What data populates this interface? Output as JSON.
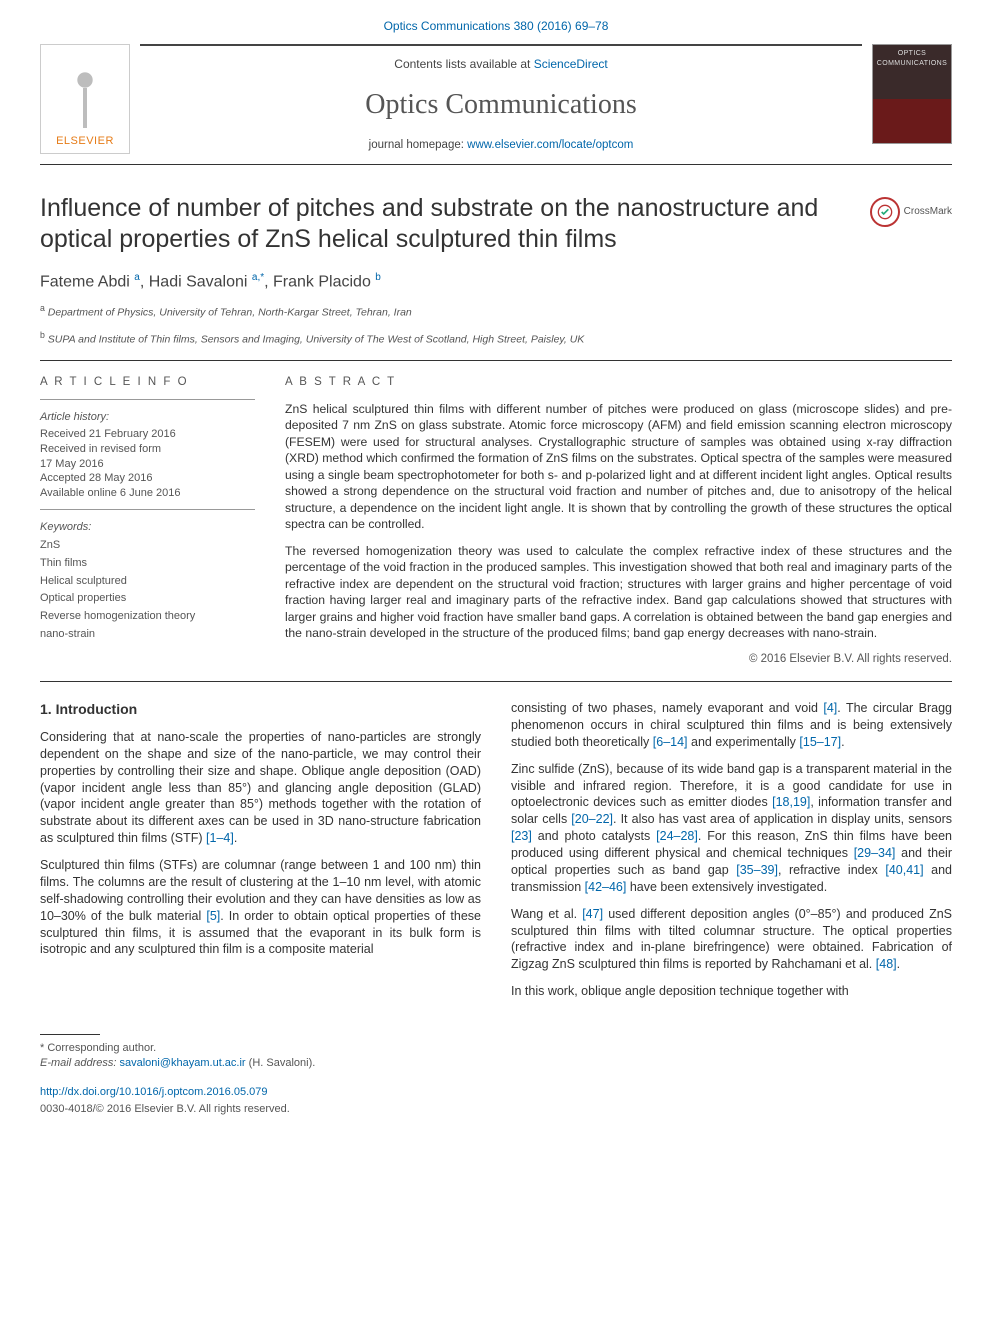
{
  "journal_ref": "Optics Communications 380 (2016) 69–78",
  "header": {
    "contents_prefix": "Contents lists available at ",
    "contents_link": "ScienceDirect",
    "journal_name": "Optics Communications",
    "homepage_prefix": "journal homepage: ",
    "homepage_url": "www.elsevier.com/locate/optcom",
    "publisher_brand": "ELSEVIER",
    "cover_label": "OPTICS COMMUNICATIONS"
  },
  "article": {
    "title": "Influence of number of pitches and substrate on the nanostructure and optical properties of ZnS helical sculptured thin films",
    "crossmark_label": "CrossMark",
    "authors_html": "Fateme Abdi <sup>a</sup>, Hadi Savaloni <sup>a,*</sup>, Frank Placido <sup>b</sup>",
    "affiliations": [
      {
        "sup": "a",
        "text": " Department of Physics, University of Tehran, North-Kargar Street, Tehran, Iran"
      },
      {
        "sup": "b",
        "text": " SUPA and Institute of Thin films, Sensors and Imaging, University of The West of Scotland, High Street, Paisley, UK"
      }
    ]
  },
  "info": {
    "heading": "A R T I C L E  I N F O",
    "history_label": "Article history:",
    "history": [
      "Received 21 February 2016",
      "Received in revised form",
      "17 May 2016",
      "Accepted 28 May 2016",
      "Available online 6 June 2016"
    ],
    "keywords_label": "Keywords:",
    "keywords": [
      "ZnS",
      "Thin films",
      "Helical sculptured",
      "Optical properties",
      "Reverse homogenization theory",
      "nano-strain"
    ]
  },
  "abstract": {
    "heading": "A B S T R A C T",
    "paragraphs": [
      "ZnS helical sculptured thin films with different number of pitches were produced on glass (microscope slides) and pre-deposited 7 nm ZnS on glass substrate. Atomic force microscopy (AFM) and field emission scanning electron microscopy (FESEM) were used for structural analyses. Crystallographic structure of samples was obtained using x-ray diffraction (XRD) method which confirmed the formation of ZnS films on the substrates. Optical spectra of the samples were measured using a single beam spectrophotometer for both s- and p-polarized light and at different incident light angles. Optical results showed a strong dependence on the structural void fraction and number of pitches and, due to anisotropy of the helical structure, a dependence on the incident light angle. It is shown that by controlling the growth of these structures the optical spectra can be controlled.",
      "The reversed homogenization theory was used to calculate the complex refractive index of these structures and the percentage of the void fraction in the produced samples. This investigation showed that both real and imaginary parts of the refractive index are dependent on the structural void fraction; structures with larger grains and higher percentage of void fraction having larger real and imaginary parts of the refractive index. Band gap calculations showed that structures with larger grains and higher void fraction have smaller band gaps. A correlation is obtained between the band gap energies and the nano-strain developed in the structure of the produced films; band gap energy decreases with nano-strain."
    ],
    "copyright": "© 2016 Elsevier B.V. All rights reserved."
  },
  "intro": {
    "heading": "1. Introduction",
    "left_paragraphs": [
      "Considering that at nano-scale the properties of nano-particles are strongly dependent on the shape and size of the nano-particle, we may control their properties by controlling their size and shape. Oblique angle deposition (OAD) (vapor incident angle less than 85°) and glancing angle deposition (GLAD) (vapor incident angle greater than 85°) methods together with the rotation of substrate about its different axes can be used in 3D nano-structure fabrication as sculptured thin films (STF) [1–4].",
      "Sculptured thin films (STFs) are columnar (range between 1 and 100 nm) thin films. The columns are the result of clustering at the 1–10 nm level, with atomic self-shadowing controlling their evolution and they can have densities as low as 10–30% of the bulk material [5]. In order to obtain optical properties of these sculptured thin films, it is assumed that the evaporant in its bulk form is isotropic and any sculptured thin film is a composite material"
    ],
    "right_paragraphs": [
      "consisting of two phases, namely evaporant and void [4]. The circular Bragg phenomenon occurs in chiral sculptured thin films and is being extensively studied both theoretically [6–14] and experimentally [15–17].",
      "Zinc sulfide (ZnS), because of its wide band gap is a transparent material in the visible and infrared region. Therefore, it is a good candidate for use in optoelectronic devices such as emitter diodes [18,19], information transfer and solar cells [20–22]. It also has vast area of application in display units, sensors [23] and photo catalysts [24–28]. For this reason, ZnS thin films have been produced using different physical and chemical techniques [29–34] and their optical properties such as band gap [35–39], refractive index [40,41] and transmission [42–46] have been extensively investigated.",
      "Wang et al. [47] used different deposition angles (0°–85°) and produced ZnS sculptured thin films with tilted columnar structure. The optical properties (refractive index and in-plane birefringence) were obtained. Fabrication of Zigzag ZnS sculptured thin films is reported by Rahchamani et al. [48].",
      "In this work, oblique angle deposition technique together with"
    ]
  },
  "footnotes": {
    "corr_marker": "* Corresponding author.",
    "email_label": "E-mail address: ",
    "email": "savaloni@khayam.ut.ac.ir",
    "email_attr": " (H. Savaloni)."
  },
  "doi": {
    "url": "http://dx.doi.org/10.1016/j.optcom.2016.05.079",
    "issn": "0030-4018/© 2016 Elsevier B.V. All rights reserved."
  },
  "colors": {
    "link": "#0066aa",
    "brand_orange": "#e67b17",
    "text": "#333333",
    "muted": "#555555",
    "rule": "#333333",
    "cover_top": "#3a2a2a",
    "cover_bottom": "#6a1a1a"
  }
}
